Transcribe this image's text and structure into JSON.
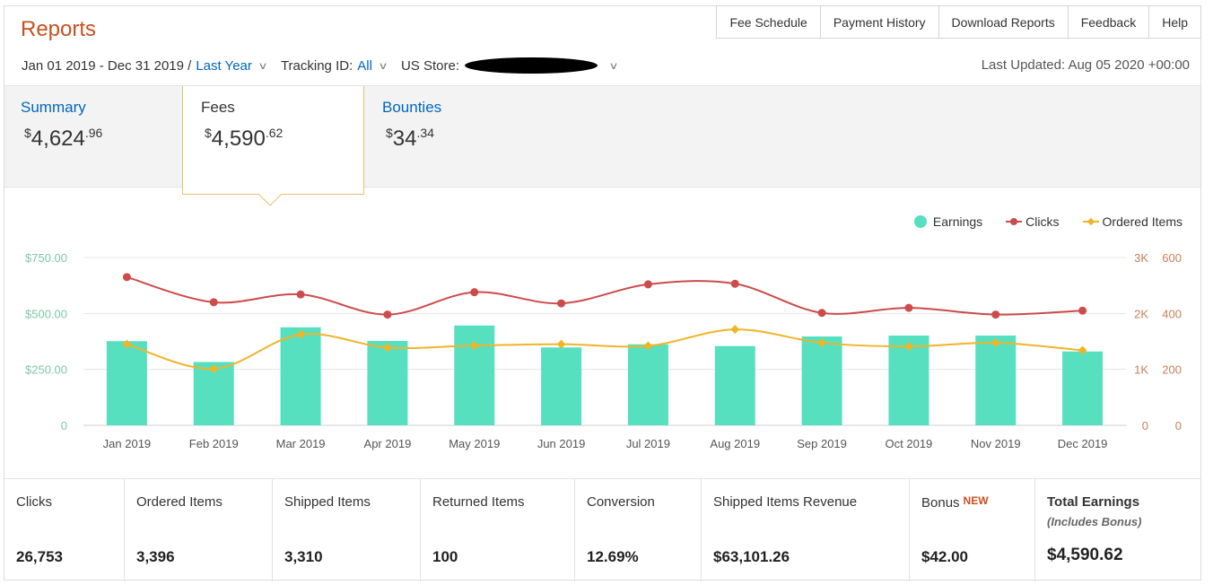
{
  "header": {
    "title": "Reports",
    "nav": [
      "Fee Schedule",
      "Payment History",
      "Download Reports",
      "Feedback",
      "Help"
    ],
    "date_range": "Jan 01 2019 - Dec 31 2019 /",
    "date_preset": "Last Year",
    "tracking_label": "Tracking ID:",
    "tracking_value": "All",
    "store_label": "US Store:",
    "last_updated": "Last Updated: Aug 05 2020 +00:00"
  },
  "tabs": [
    {
      "label": "Summary",
      "currency": "$",
      "whole": "4,624",
      "cents": ".96"
    },
    {
      "label": "Fees",
      "currency": "$",
      "whole": "4,590",
      "cents": ".62"
    },
    {
      "label": "Bounties",
      "currency": "$",
      "whole": "34",
      "cents": ".34"
    }
  ],
  "chart_data": {
    "type": "bar",
    "categories": [
      "Jan 2019",
      "Feb 2019",
      "Mar 2019",
      "Apr 2019",
      "May 2019",
      "Jun 2019",
      "Jul 2019",
      "Aug 2019",
      "Sep 2019",
      "Oct 2019",
      "Nov 2019",
      "Dec 2019"
    ],
    "series": [
      {
        "name": "Earnings",
        "type": "bar",
        "axis": "left",
        "color": "#56e0c0",
        "values": [
          376,
          283,
          438,
          377,
          446,
          348,
          362,
          354,
          397,
          401,
          401,
          330
        ]
      },
      {
        "name": "Clicks",
        "type": "line",
        "axis": "right-1",
        "color": "#cc4b4b",
        "values": [
          2650,
          2200,
          2340,
          1980,
          2380,
          2180,
          2520,
          2530,
          2010,
          2100,
          1980,
          2050
        ]
      },
      {
        "name": "Ordered Items",
        "type": "line",
        "axis": "right-2",
        "color": "#f0b429",
        "values": [
          290,
          202,
          325,
          278,
          285,
          290,
          284,
          343,
          295,
          282,
          295,
          268
        ]
      }
    ],
    "left_axis": {
      "ticks": [
        "0",
        "$250.00",
        "$500.00",
        "$750.00"
      ],
      "ylim": [
        0,
        750
      ],
      "color": "#7cc9a5"
    },
    "right_axis_1": {
      "ticks": [
        "0",
        "1K",
        "2K",
        "3K"
      ],
      "ylim": [
        0,
        3000
      ],
      "color": "#c8805a"
    },
    "right_axis_2": {
      "ticks": [
        "0",
        "200",
        "400",
        "600"
      ],
      "ylim": [
        0,
        600
      ],
      "color": "#c8805a"
    },
    "legend": [
      "Earnings",
      "Clicks",
      "Ordered Items"
    ],
    "legend_position": "top-right",
    "grid": true
  },
  "stats": [
    {
      "label": "Clicks",
      "value": "26,753"
    },
    {
      "label": "Ordered Items",
      "value": "3,396"
    },
    {
      "label": "Shipped Items",
      "value": "3,310"
    },
    {
      "label": "Returned Items",
      "value": "100"
    },
    {
      "label": "Conversion",
      "value": "12.69%"
    },
    {
      "label": "Shipped Items Revenue",
      "value": "$63,101.26"
    },
    {
      "label": "Bonus",
      "badge": "NEW",
      "value": "$42.00"
    },
    {
      "label": "Total Earnings",
      "note": "(Includes Bonus)",
      "value": "$4,590.62"
    }
  ]
}
